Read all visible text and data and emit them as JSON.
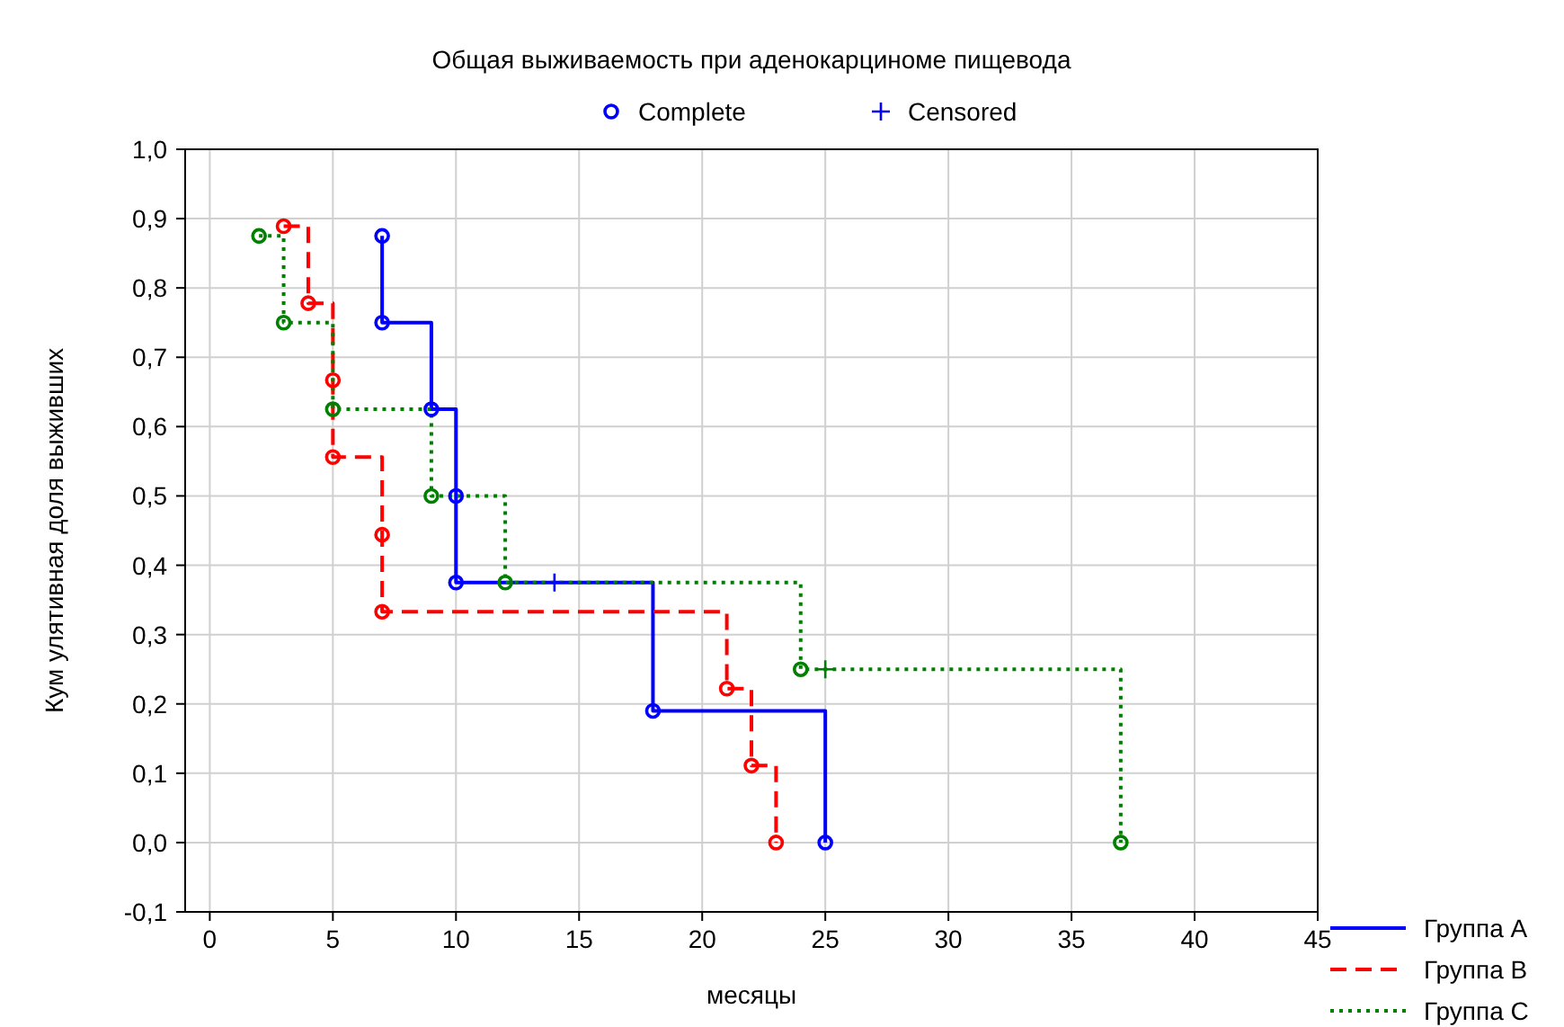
{
  "chart_data": {
    "type": "line",
    "title": "Общая выживаемость при аденокарциноме пищевода",
    "xlabel": "месяцы",
    "ylabel": "Кум улятивная доля выживших",
    "xlim": [
      -1,
      45
    ],
    "xticks": [
      0,
      5,
      10,
      15,
      20,
      25,
      30,
      35,
      40,
      45
    ],
    "ylim": [
      -0.1,
      1.0
    ],
    "yticks": [
      {
        "value": -0.1,
        "label": "-0,1"
      },
      {
        "value": 0,
        "label": "0,0"
      },
      {
        "value": 0.1,
        "label": "0,1"
      },
      {
        "value": 0.2,
        "label": "0,2"
      },
      {
        "value": 0.3,
        "label": "0,3"
      },
      {
        "value": 0.4,
        "label": "0,4"
      },
      {
        "value": 0.5,
        "label": "0,5"
      },
      {
        "value": 0.6,
        "label": "0,6"
      },
      {
        "value": 0.7,
        "label": "0,7"
      },
      {
        "value": 0.8,
        "label": "0,8"
      },
      {
        "value": 0.9,
        "label": "0,9"
      },
      {
        "value": 1.0,
        "label": "1,0"
      }
    ],
    "grid": true,
    "legend": "bottom right",
    "series": [
      {
        "name": "Группа A",
        "line_style": "solid",
        "color": "#0000ff",
        "x": [
          7,
          7,
          9,
          9,
          10,
          10,
          18,
          18,
          25,
          25
        ],
        "values": [
          0.875,
          0.75,
          0.75,
          0.625,
          0.625,
          0.375,
          0.375,
          0.19,
          0.19,
          0
        ]
      },
      {
        "name": "Группа B",
        "line_style": "dashed",
        "color": "#ff0000",
        "x": [
          3,
          4,
          4,
          5,
          5,
          7,
          7,
          21,
          21,
          22,
          22,
          23,
          23
        ],
        "values": [
          0.889,
          0.889,
          0.778,
          0.778,
          0.556,
          0.556,
          0.333,
          0.333,
          0.222,
          0.222,
          0.111,
          0.111,
          0
        ]
      },
      {
        "name": "Группа C",
        "line_style": "dotted",
        "color": "#008000",
        "x": [
          2,
          3,
          3,
          5,
          5,
          9,
          9,
          12,
          12,
          24,
          24,
          37,
          37
        ],
        "values": [
          0.875,
          0.875,
          0.75,
          0.75,
          0.625,
          0.625,
          0.5,
          0.5,
          0.375,
          0.375,
          0.25,
          0.25,
          0
        ]
      },
      {
        "name": "Complete",
        "type": "scatter",
        "marker": "circle",
        "color": "#0000ff",
        "x": [
          7,
          7,
          9,
          10,
          10,
          18,
          25,
          3,
          4,
          5,
          5,
          7,
          7,
          21,
          22,
          23,
          2,
          3,
          5,
          9,
          12,
          24,
          37
        ],
        "values": [
          0.875,
          0.75,
          0.625,
          0.5,
          0.375,
          0.19,
          0,
          0.889,
          0.778,
          0.667,
          0.556,
          0.444,
          0.333,
          0.222,
          0.111,
          0,
          0.875,
          0.75,
          0.625,
          0.5,
          0.375,
          0.25,
          0
        ],
        "colors": [
          "#0000ff",
          "#0000ff",
          "#0000ff",
          "#0000ff",
          "#0000ff",
          "#0000ff",
          "#0000ff",
          "#ff0000",
          "#ff0000",
          "#ff0000",
          "#ff0000",
          "#ff0000",
          "#ff0000",
          "#ff0000",
          "#ff0000",
          "#ff0000",
          "#008000",
          "#008000",
          "#008000",
          "#008000",
          "#008000",
          "#008000",
          "#008000"
        ]
      },
      {
        "name": "Censored",
        "type": "scatter",
        "marker": "cross",
        "color": "#0000ff",
        "x": [
          14,
          25
        ],
        "values": [
          0.375,
          0.25
        ],
        "colors": [
          "#0000ff",
          "#008000"
        ]
      }
    ]
  }
}
